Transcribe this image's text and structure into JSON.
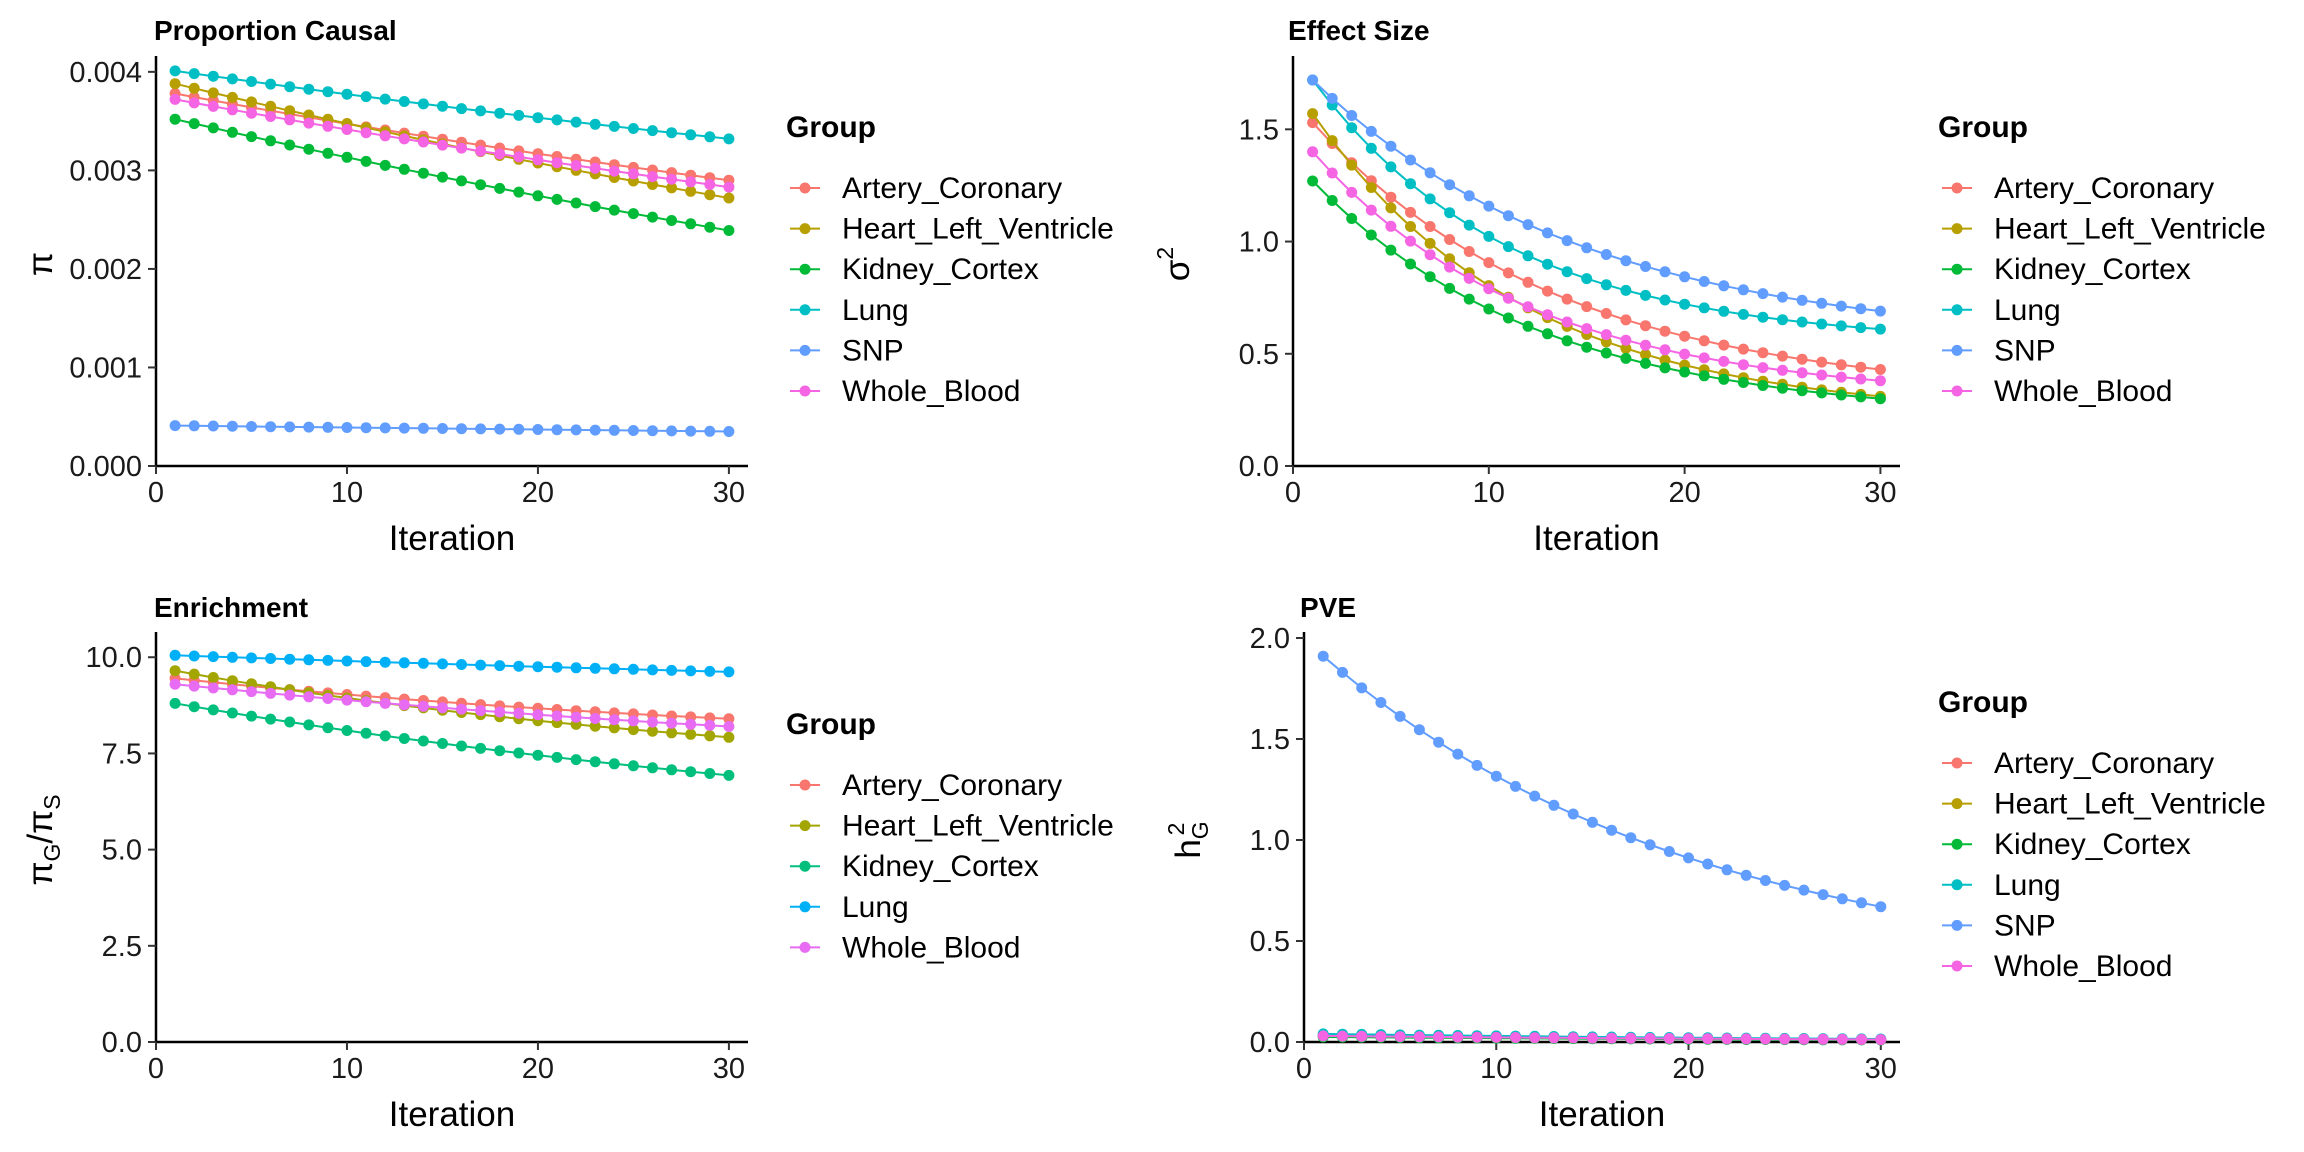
{
  "chart_data": [
    {
      "type": "line",
      "title": "Proportion Causal",
      "xlabel": "Iteration",
      "ylabel": "π",
      "ylim": [
        0,
        0.0041
      ],
      "xlim": [
        0,
        31
      ],
      "xticks": [
        0,
        10,
        20,
        30
      ],
      "yticks": [
        0.0,
        0.001,
        0.002,
        0.003,
        0.004
      ],
      "ytick_labels": [
        "0.000",
        "0.001",
        "0.002",
        "0.003",
        "0.004"
      ],
      "legend": {
        "title": "Group",
        "position": "right"
      },
      "series": [
        {
          "name": "Artery_Coronary",
          "color": "#F8766D",
          "start": 0.00378,
          "end": 0.0029,
          "curve": 0.35
        },
        {
          "name": "Heart_Left_Ventricle",
          "color": "#B79F00",
          "start": 0.00388,
          "end": 0.00272,
          "curve": 0.35
        },
        {
          "name": "Kidney_Cortex",
          "color": "#00BA38",
          "start": 0.00352,
          "end": 0.00239,
          "curve": 0.3
        },
        {
          "name": "Lung",
          "color": "#00BFC4",
          "start": 0.00401,
          "end": 0.00332,
          "curve": 0.3
        },
        {
          "name": "SNP",
          "color": "#619CFF",
          "start": 0.00041,
          "end": 0.00035,
          "curve": 0.1
        },
        {
          "name": "Whole_Blood",
          "color": "#F564E3",
          "start": 0.00372,
          "end": 0.00283,
          "curve": 0.3
        }
      ]
    },
    {
      "type": "line",
      "title": "Effect Size",
      "xlabel": "Iteration",
      "ylabel": "σ",
      "ylabel_sup": "2",
      "ylim": [
        0,
        1.8
      ],
      "xlim": [
        0,
        31
      ],
      "xticks": [
        0,
        10,
        20,
        30
      ],
      "yticks": [
        0.0,
        0.5,
        1.0,
        1.5
      ],
      "ytick_labels": [
        "0.0",
        "0.5",
        "1.0",
        "1.5"
      ],
      "legend": {
        "title": "Group",
        "position": "right"
      },
      "series": [
        {
          "name": "Artery_Coronary",
          "color": "#F8766D",
          "start": 1.53,
          "end": 0.43,
          "curve": 2.3
        },
        {
          "name": "Heart_Left_Ventricle",
          "color": "#B79F00",
          "start": 1.57,
          "end": 0.31,
          "curve": 2.7
        },
        {
          "name": "Kidney_Cortex",
          "color": "#00BA38",
          "start": 1.27,
          "end": 0.3,
          "curve": 2.5
        },
        {
          "name": "Lung",
          "color": "#00BFC4",
          "start": 1.72,
          "end": 0.61,
          "curve": 2.9
        },
        {
          "name": "SNP",
          "color": "#619CFF",
          "start": 1.72,
          "end": 0.69,
          "curve": 2.1
        },
        {
          "name": "Whole_Blood",
          "color": "#F564E3",
          "start": 1.4,
          "end": 0.38,
          "curve": 2.6
        }
      ]
    },
    {
      "type": "line",
      "title": "Enrichment",
      "xlabel": "Iteration",
      "ylabel": "π",
      "ylabel_sub1": "G",
      "ylabel_mid": "/π",
      "ylabel_sub2": "S",
      "ylim": [
        0,
        10.5
      ],
      "xlim": [
        0,
        31
      ],
      "xticks": [
        0,
        10,
        20,
        30
      ],
      "yticks": [
        0.0,
        2.5,
        5.0,
        7.5,
        10.0
      ],
      "ytick_labels": [
        "0.0",
        "2.5",
        "5.0",
        "7.5",
        "10.0"
      ],
      "legend": {
        "title": "Group",
        "position": "right"
      },
      "series": [
        {
          "name": "Artery_Coronary",
          "color": "#F8766D",
          "start": 9.45,
          "end": 8.4,
          "curve": 0.8
        },
        {
          "name": "Heart_Left_Ventricle",
          "color": "#A3A500",
          "start": 9.65,
          "end": 7.92,
          "curve": 0.9
        },
        {
          "name": "Kidney_Cortex",
          "color": "#00BF7D",
          "start": 8.8,
          "end": 6.93,
          "curve": 0.6
        },
        {
          "name": "Lung",
          "color": "#00B0F6",
          "start": 10.05,
          "end": 9.62,
          "curve": 0.3
        },
        {
          "name": "Whole_Blood",
          "color": "#E76BF3",
          "start": 9.3,
          "end": 8.2,
          "curve": 0.6
        }
      ]
    },
    {
      "type": "line",
      "title": "PVE",
      "xlabel": "Iteration",
      "ylabel": "h",
      "ylabel_sub1": "G",
      "ylabel_sup": "2",
      "ylim": [
        0,
        2.0
      ],
      "xlim": [
        0,
        31
      ],
      "xticks": [
        0,
        10,
        20,
        30
      ],
      "yticks": [
        0.0,
        0.5,
        1.0,
        1.5,
        2.0
      ],
      "ytick_labels": [
        "0.0",
        "0.5",
        "1.0",
        "1.5",
        "2.0"
      ],
      "legend": {
        "title": "Group",
        "position": "right"
      },
      "series": [
        {
          "name": "Artery_Coronary",
          "color": "#F8766D",
          "start": 0.03,
          "end": 0.012,
          "curve": 0.8
        },
        {
          "name": "Heart_Left_Ventricle",
          "color": "#B79F00",
          "start": 0.035,
          "end": 0.012,
          "curve": 0.8
        },
        {
          "name": "Kidney_Cortex",
          "color": "#00BA38",
          "start": 0.025,
          "end": 0.01,
          "curve": 0.8
        },
        {
          "name": "Lung",
          "color": "#00BFC4",
          "start": 0.04,
          "end": 0.015,
          "curve": 0.8
        },
        {
          "name": "SNP",
          "color": "#619CFF",
          "start": 1.91,
          "end": 0.67,
          "curve": 1.5
        },
        {
          "name": "Whole_Blood",
          "color": "#F564E3",
          "start": 0.03,
          "end": 0.012,
          "curve": 0.8
        }
      ]
    }
  ]
}
